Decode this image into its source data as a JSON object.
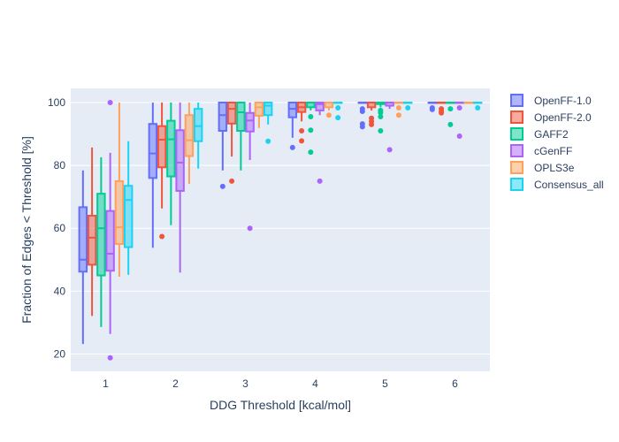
{
  "chart_data": {
    "type": "box",
    "xlabel": "DDG Threshold [kcal/mol]",
    "ylabel": "Fraction of Edges < Threshold [%]",
    "categories": [
      "1",
      "2",
      "3",
      "4",
      "5",
      "6"
    ],
    "y_ticks": [
      20,
      40,
      60,
      80,
      100
    ],
    "ylim": [
      14.5,
      104.5
    ],
    "grid": true,
    "legend_position": "right",
    "background": "#E5ECF6",
    "series": [
      {
        "name": "OpenFF-1.0",
        "color": "#636EFA",
        "boxes": [
          {
            "min": 23.2,
            "q1": 46.2,
            "median": 50.0,
            "q3": 66.7,
            "max": 78.4,
            "outliers": []
          },
          {
            "min": 53.8,
            "q1": 76.0,
            "median": 83.8,
            "q3": 93.2,
            "max": 100,
            "outliers": []
          },
          {
            "min": 78.4,
            "q1": 91.0,
            "median": 96.0,
            "q3": 100,
            "max": 100,
            "outliers": [
              73.3
            ]
          },
          {
            "min": 88.8,
            "q1": 95.3,
            "median": 98.0,
            "q3": 100,
            "max": 100,
            "outliers": [
              85.7
            ]
          },
          {
            "min": 100,
            "q1": 100,
            "median": 100,
            "q3": 100,
            "max": 100,
            "outliers": [
              98.0,
              97.2,
              93.2,
              92.3
            ]
          },
          {
            "min": 100,
            "q1": 100,
            "median": 100,
            "q3": 100,
            "max": 100,
            "outliers": [
              98.3,
              97.8
            ]
          }
        ]
      },
      {
        "name": "OpenFF-2.0",
        "color": "#EF553B",
        "boxes": [
          {
            "min": 32.1,
            "q1": 48.4,
            "median": 57.0,
            "q3": 64.0,
            "max": 85.7,
            "outliers": []
          },
          {
            "min": 66.3,
            "q1": 79.4,
            "median": 88.2,
            "q3": 92.5,
            "max": 100,
            "outliers": [
              57.4
            ]
          },
          {
            "min": 82.8,
            "q1": 93.3,
            "median": 98.0,
            "q3": 100,
            "max": 100,
            "outliers": [
              75.0
            ]
          },
          {
            "min": 94.0,
            "q1": 97.0,
            "median": 98.5,
            "q3": 100,
            "max": 100,
            "outliers": [
              91.0,
              87.8
            ]
          },
          {
            "min": 97.5,
            "q1": 98.5,
            "median": 100,
            "q3": 100,
            "max": 100,
            "outliers": [
              95.0,
              94.0,
              93.0
            ]
          },
          {
            "min": 100,
            "q1": 100,
            "median": 100,
            "q3": 100,
            "max": 100,
            "outliers": [
              98.0,
              97.2,
              96.7
            ]
          }
        ]
      },
      {
        "name": "GAFF2",
        "color": "#00CC96",
        "boxes": [
          {
            "min": 28.6,
            "q1": 45.0,
            "median": 60.0,
            "q3": 71.0,
            "max": 82.6,
            "outliers": []
          },
          {
            "min": 61.0,
            "q1": 76.5,
            "median": 88.3,
            "q3": 94.2,
            "max": 100,
            "outliers": []
          },
          {
            "min": 78.4,
            "q1": 91.0,
            "median": 96.9,
            "q3": 100,
            "max": 100,
            "outliers": []
          },
          {
            "min": 97.5,
            "q1": 98.5,
            "median": 100,
            "q3": 100,
            "max": 100,
            "outliers": [
              95.5,
              91.2,
              84.2
            ]
          },
          {
            "min": 98.5,
            "q1": 99.5,
            "median": 100,
            "q3": 100,
            "max": 100,
            "outliers": [
              97.5,
              96.8,
              95.5,
              91.0
            ]
          },
          {
            "min": 100,
            "q1": 100,
            "median": 100,
            "q3": 100,
            "max": 100,
            "outliers": [
              98.0,
              93.0
            ]
          }
        ]
      },
      {
        "name": "cGenFF",
        "color": "#AB63FA",
        "boxes": [
          {
            "min": 26.4,
            "q1": 46.5,
            "median": 51.9,
            "q3": 65.5,
            "max": 84.0,
            "outliers": [
              100,
              18.8
            ]
          },
          {
            "min": 45.9,
            "q1": 71.9,
            "median": 80.9,
            "q3": 91.2,
            "max": 100,
            "outliers": []
          },
          {
            "min": 81.7,
            "q1": 90.8,
            "median": 94.3,
            "q3": 96.7,
            "max": 100,
            "outliers": [
              60.0
            ]
          },
          {
            "min": 96.0,
            "q1": 97.5,
            "median": 99.5,
            "q3": 100,
            "max": 100,
            "outliers": [
              75.0
            ]
          },
          {
            "min": 98.0,
            "q1": 99.0,
            "median": 100,
            "q3": 100,
            "max": 100,
            "outliers": [
              85.0
            ]
          },
          {
            "min": 100,
            "q1": 100,
            "median": 100,
            "q3": 100,
            "max": 100,
            "outliers": [
              98.3,
              89.3
            ]
          }
        ]
      },
      {
        "name": "OPLS3e",
        "color": "#FFA15A",
        "boxes": [
          {
            "min": 44.6,
            "q1": 55.0,
            "median": 60.3,
            "q3": 75.0,
            "max": 100,
            "outliers": []
          },
          {
            "min": 74.1,
            "q1": 83.0,
            "median": 88.0,
            "q3": 96.0,
            "max": 100,
            "outliers": []
          },
          {
            "min": 91.9,
            "q1": 95.8,
            "median": 98.5,
            "q3": 100,
            "max": 100,
            "outliers": []
          },
          {
            "min": 97.5,
            "q1": 98.5,
            "median": 100,
            "q3": 100,
            "max": 100,
            "outliers": [
              96.0
            ]
          },
          {
            "min": 100,
            "q1": 100,
            "median": 100,
            "q3": 100,
            "max": 100,
            "outliers": [
              98.3,
              96.0
            ]
          },
          {
            "min": 100,
            "q1": 100,
            "median": 100,
            "q3": 100,
            "max": 100,
            "outliers": []
          }
        ]
      },
      {
        "name": "Consensus_all",
        "color": "#19D3F3",
        "boxes": [
          {
            "min": 45.2,
            "q1": 54.0,
            "median": 69.0,
            "q3": 73.5,
            "max": 87.7,
            "outliers": []
          },
          {
            "min": 79.0,
            "q1": 87.7,
            "median": 92.5,
            "q3": 98.0,
            "max": 100,
            "outliers": []
          },
          {
            "min": 93.0,
            "q1": 96.0,
            "median": 99.0,
            "q3": 100,
            "max": 100,
            "outliers": [
              87.7
            ]
          },
          {
            "min": 100,
            "q1": 100,
            "median": 100,
            "q3": 100,
            "max": 100,
            "outliers": [
              98.3,
              95.2
            ]
          },
          {
            "min": 100,
            "q1": 100,
            "median": 100,
            "q3": 100,
            "max": 100,
            "outliers": [
              98.3
            ]
          },
          {
            "min": 100,
            "q1": 100,
            "median": 100,
            "q3": 100,
            "max": 100,
            "outliers": [
              98.3
            ]
          }
        ]
      }
    ]
  }
}
